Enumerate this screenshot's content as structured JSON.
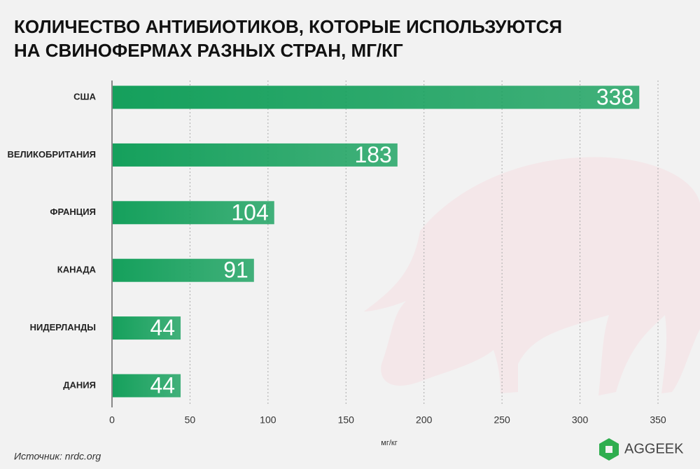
{
  "chart_data": {
    "type": "barh",
    "title": [
      "КОЛИЧЕСТВО АНТИБИОТИКОВ, КОТОРЫЕ ИСПОЛЬЗУЮТСЯ",
      "НА СВИНОФЕРМАХ РАЗНЫХ СТРАН, МГ/КГ"
    ],
    "categories": [
      "США",
      "ВЕЛИКОБРИТАНИЯ",
      "ФРАНЦИЯ",
      "КАНАДА",
      "НИДЕРЛАНДЫ",
      "ДАНИЯ"
    ],
    "values": [
      338,
      183,
      104,
      91,
      44,
      44
    ],
    "color": "#15a05c",
    "xlim": [
      0,
      350
    ],
    "xticks": [
      0,
      50,
      100,
      150,
      200,
      250,
      300,
      350
    ],
    "xlabel": "мг/кг",
    "grid": true,
    "source": "Источник: nrdc.org",
    "logo": "AGGEEK"
  }
}
